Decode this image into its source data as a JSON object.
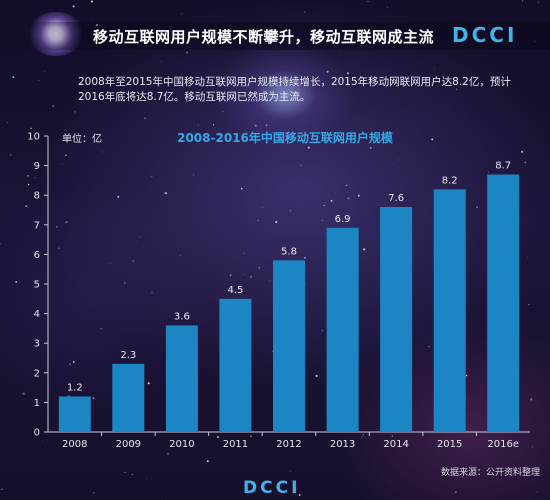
{
  "header": {
    "title": "移动互联网用户规模不断攀升，移动互联网成主流",
    "logo": "DCCI"
  },
  "intro": "2008年至2015年中国移动互联网用户规模持续增长，2015年移动网联网用户达8.2亿，预计2016年底将达8.7亿。移动互联网已然成为主流。",
  "footer": {
    "source": "数据来源：公开资料整理",
    "logo": "DCCI"
  },
  "colors": {
    "bar": "#1c86c4",
    "title": "#31a9e6",
    "logo": "#3fb3ea"
  },
  "chart_data": {
    "type": "bar",
    "title": "2008-2016年中国移动互联网用户规模",
    "unit_label": "单位：亿",
    "categories": [
      "2008",
      "2009",
      "2010",
      "2011",
      "2012",
      "2013",
      "2014",
      "2015",
      "2016e"
    ],
    "values": [
      1.2,
      2.3,
      3.6,
      4.5,
      5.8,
      6.9,
      7.6,
      8.2,
      8.7
    ],
    "value_labels": [
      "1.2",
      "2.3",
      "3.6",
      "4.5",
      "5.8",
      "6.9",
      "7.6",
      "8.2",
      "8.7"
    ],
    "yticks": [
      "0",
      "1",
      "2",
      "3",
      "4",
      "5",
      "6",
      "7",
      "8",
      "9",
      "10"
    ],
    "ylim": [
      0,
      10
    ],
    "grid": false,
    "legend": "none"
  }
}
